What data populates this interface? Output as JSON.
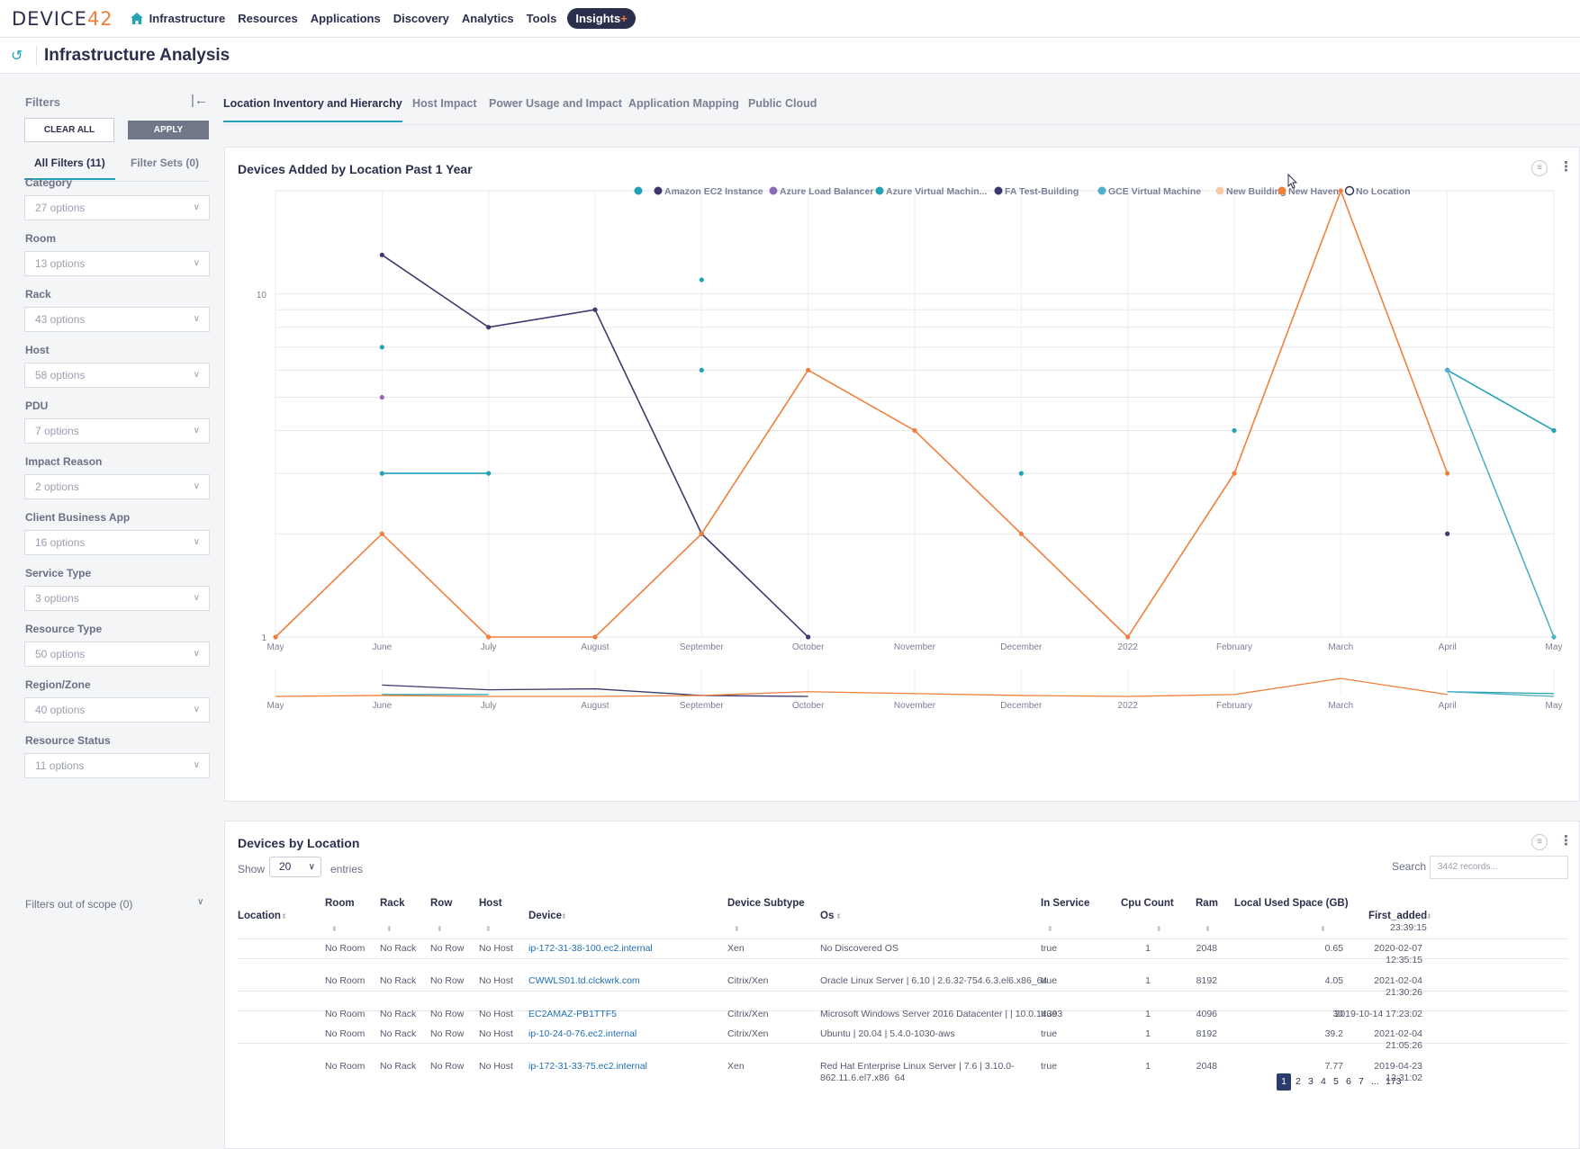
{
  "brand": {
    "logo_text": "DEVICE",
    "logo_num": "42"
  },
  "nav": {
    "items": [
      "Infrastructure",
      "Resources",
      "Applications",
      "Discovery",
      "Analytics",
      "Tools"
    ],
    "insights_label": "Insights",
    "insights_plus": "+"
  },
  "page": {
    "title": "Infrastructure Analysis"
  },
  "sidebar": {
    "heading": "Filters",
    "clear_label": "CLEAR ALL",
    "apply_label": "APPLY",
    "tabs": [
      "All Filters (11)",
      "Filter Sets (0)"
    ],
    "filters": [
      {
        "label": "Category",
        "value": "27 options"
      },
      {
        "label": "Room",
        "value": "13 options"
      },
      {
        "label": "Rack",
        "value": "43 options"
      },
      {
        "label": "Host",
        "value": "58 options"
      },
      {
        "label": "PDU",
        "value": "7 options"
      },
      {
        "label": "Impact Reason",
        "value": "2 options"
      },
      {
        "label": "Client Business App",
        "value": "16 options"
      },
      {
        "label": "Service Type",
        "value": "3 options"
      },
      {
        "label": "Resource Type",
        "value": "50 options"
      },
      {
        "label": "Region/Zone",
        "value": "40 options"
      },
      {
        "label": "Resource Status",
        "value": "11 options"
      }
    ],
    "scope_label": "Filters out of scope (0)"
  },
  "tabs": [
    "Location Inventory and Hierarchy",
    "Host Impact",
    "Power Usage and Impact",
    "Application Mapping",
    "Public Cloud"
  ],
  "chart_card": {
    "title": "Devices Added by Location Past 1 Year"
  },
  "chart_data": {
    "type": "line",
    "title": "Devices Added by Location Past 1 Year",
    "xlabel": "",
    "ylabel": "",
    "log_scale": true,
    "ylim": [
      1,
      20
    ],
    "yticks": [
      "1",
      "10"
    ],
    "grid": true,
    "legend_position": "top-right",
    "categories": [
      "May",
      "June",
      "July",
      "August",
      "September",
      "October",
      "November",
      "December",
      "2022",
      "February",
      "March",
      "April",
      "May"
    ],
    "series": [
      {
        "name": "",
        "color": "#21a2b5",
        "values": [
          null,
          7,
          null,
          null,
          6,
          null,
          null,
          3,
          null,
          4,
          null,
          6,
          null
        ]
      },
      {
        "name": "Amazon EC2 Instance",
        "color": "#3d3a6b",
        "values": [
          null,
          13,
          8,
          9,
          2,
          1,
          null,
          null,
          null,
          null,
          null,
          2,
          null
        ]
      },
      {
        "name": "Azure Load Balancer",
        "color": "#8b6bb7",
        "values": [
          null,
          5,
          null,
          null,
          null,
          null,
          null,
          null,
          null,
          null,
          null,
          null,
          null
        ]
      },
      {
        "name": "Azure Virtual Machin...",
        "color": "#21a2b5",
        "values": [
          null,
          3,
          3,
          null,
          11,
          null,
          null,
          null,
          null,
          null,
          null,
          6,
          4
        ]
      },
      {
        "name": "FA Test-Building",
        "color": "#3d3a6b",
        "values": [
          null,
          null,
          null,
          null,
          null,
          null,
          null,
          null,
          null,
          null,
          null,
          null,
          null
        ]
      },
      {
        "name": "GCE Virtual Machine",
        "color": "#4fb0c6",
        "values": [
          null,
          null,
          null,
          null,
          null,
          null,
          null,
          null,
          null,
          null,
          null,
          6,
          1
        ]
      },
      {
        "name": "New Building",
        "color": "#f7c9a6",
        "values": [
          null,
          null,
          null,
          null,
          null,
          null,
          null,
          null,
          null,
          null,
          null,
          null,
          null
        ]
      },
      {
        "name": "New Haven",
        "color": "#f07f3c",
        "values": [
          1,
          2,
          1,
          1,
          2,
          6,
          4,
          2,
          1,
          3,
          20,
          3,
          null
        ]
      },
      {
        "name": "No Location",
        "color": "#2b2f4c",
        "values": [
          null,
          null,
          null,
          null,
          null,
          null,
          null,
          null,
          null,
          null,
          null,
          null,
          null
        ]
      }
    ]
  },
  "table_card": {
    "title": "Devices by Location",
    "show_label": "Show",
    "page_size": "20",
    "entries_label": "entries",
    "search_label": "Search",
    "search_placeholder": "3442 records...",
    "columns": [
      "Location",
      "Room",
      "Rack",
      "Row",
      "Host",
      "Device",
      "Device Subtype",
      "Os",
      "In Service",
      "Cpu Count",
      "Ram",
      "Local Used Space (GB)",
      "First_added"
    ],
    "top_partial": "23:39:15",
    "rows": [
      {
        "location": "",
        "room": "No Room",
        "rack": "No Rack",
        "row": "No Row",
        "host": "No Host",
        "device": "ip-172-31-38-100.ec2.internal",
        "subtype": "Xen",
        "os": "No Discovered OS",
        "in_service": "true",
        "cpu": "1",
        "ram": "2048",
        "space": "0.65",
        "first1": "2020-02-07",
        "first2": "12:35:15"
      },
      {
        "location": "",
        "room": "No Room",
        "rack": "No Rack",
        "row": "No Row",
        "host": "No Host",
        "device": "CWWLS01.td.clckwrk.com",
        "subtype": "Citrix/Xen",
        "os": "Oracle Linux Server | 6.10 | 2.6.32-754.6.3.el6.x86_64",
        "in_service": "true",
        "cpu": "1",
        "ram": "8192",
        "space": "4.05",
        "first1": "2021-02-04",
        "first2": "21:30:26"
      },
      {
        "location": "",
        "room": "No Room",
        "rack": "No Rack",
        "row": "No Row",
        "host": "No Host",
        "device": "EC2AMAZ-PB1TTF5",
        "subtype": "Citrix/Xen",
        "os": "Microsoft Windows Server 2016 Datacenter | | 10.0.14393",
        "in_service": "true",
        "cpu": "1",
        "ram": "4096",
        "space": "30",
        "first1": "2019-10-14 17:23:02",
        "first2": ""
      },
      {
        "location": "",
        "room": "No Room",
        "rack": "No Rack",
        "row": "No Row",
        "host": "No Host",
        "device": "ip-10-24-0-76.ec2.internal",
        "subtype": "Citrix/Xen",
        "os": "Ubuntu | 20.04 | 5.4.0-1030-aws",
        "in_service": "true",
        "cpu": "1",
        "ram": "8192",
        "space": "39.2",
        "first1": "2021-02-04",
        "first2": "21:05:26"
      },
      {
        "location": "",
        "room": "No Room",
        "rack": "No Rack",
        "row": "No Row",
        "host": "No Host",
        "device": "ip-172-31-33-75.ec2.internal",
        "subtype": "Xen",
        "os": "Red Hat Enterprise Linux Server | 7.6 | 3.10.0-",
        "os2": "862.11.6.el7.x86_64",
        "in_service": "true",
        "cpu": "1",
        "ram": "2048",
        "space": "7.77",
        "first1": "2019-04-23",
        "first2": "12:31:02"
      }
    ],
    "pages": [
      "1",
      "2",
      "3",
      "4",
      "5",
      "6",
      "7",
      "...",
      "173"
    ]
  }
}
